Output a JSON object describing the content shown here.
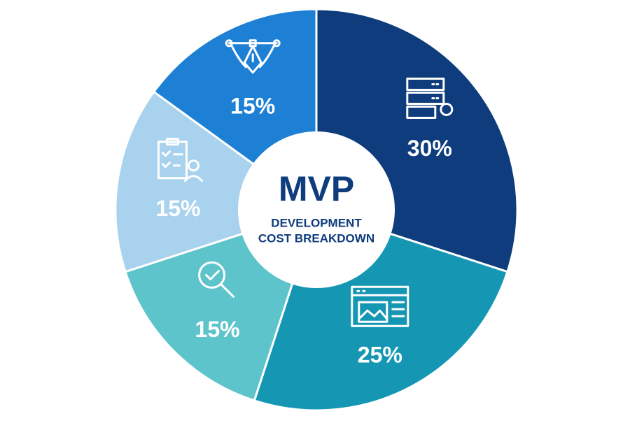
{
  "chart_data": {
    "type": "pie",
    "title": "MVP",
    "subtitle": [
      "DEVELOPMENT",
      "COST BREAKDOWN"
    ],
    "values": [
      30,
      25,
      15,
      15,
      15
    ],
    "value_labels": [
      "30%",
      "25%",
      "15%",
      "15%",
      "15%"
    ],
    "colors": [
      "#0e3c7c",
      "#1597b4",
      "#5ec4cb",
      "#a8d2ee",
      "#1d80d4"
    ],
    "donut_hole": true
  }
}
